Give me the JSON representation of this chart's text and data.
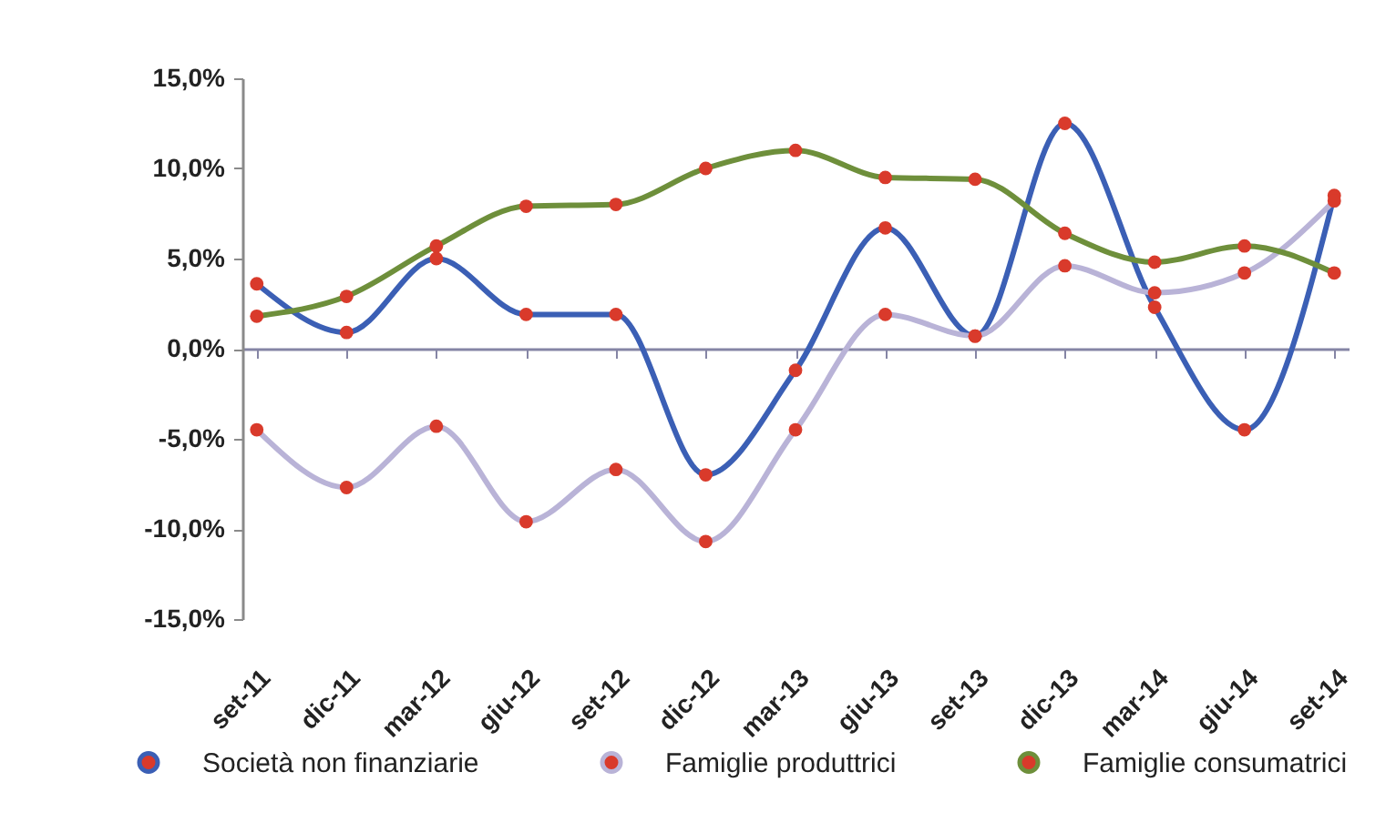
{
  "chart_data": {
    "type": "line",
    "categories": [
      "set-11",
      "dic-11",
      "mar-12",
      "giu-12",
      "set-12",
      "dic-12",
      "mar-13",
      "giu-13",
      "set-13",
      "dic-13",
      "mar-14",
      "giu-14",
      "set-14"
    ],
    "series": [
      {
        "name": "Società non finanziarie",
        "color": "#3b5fb5",
        "colors": [
          "#d93a2b",
          "#d93a2b",
          "#d93a2b",
          "#d93a2b",
          "#d93a2b",
          "#d93a2b",
          "#d93a2b",
          "#d93a2b",
          "#d93a2b",
          "#d93a2b",
          "#d93a2b",
          "#d93a2b",
          "#d93a2b"
        ],
        "values": [
          3.6,
          0.9,
          5.0,
          1.9,
          1.9,
          -7.0,
          -1.2,
          6.7,
          0.7,
          12.5,
          2.3,
          -4.5,
          8.5
        ]
      },
      {
        "name": "Famiglie produttrici",
        "color": "#b9b3d7",
        "colors": [
          "#d93a2b",
          "#d93a2b",
          "#d93a2b",
          "#d93a2b",
          "#d93a2b",
          "#d93a2b",
          "#d93a2b",
          "#d93a2b",
          "#d93a2b",
          "#d93a2b",
          "#d93a2b",
          "#d93a2b",
          "#d93a2b"
        ],
        "values": [
          -4.5,
          -7.7,
          -4.3,
          -9.6,
          -6.7,
          -10.7,
          -4.5,
          1.9,
          0.7,
          4.6,
          3.1,
          4.2,
          8.2
        ]
      },
      {
        "name": "Famiglie consumatrici",
        "color": "#6e8f3b",
        "colors": [
          "#d93a2b",
          "#d93a2b",
          "#d93a2b",
          "#d93a2b",
          "#d93a2b",
          "#d93a2b",
          "#d93a2b",
          "#d93a2b",
          "#d93a2b",
          "#d93a2b",
          "#d93a2b",
          "#d93a2b",
          "#d93a2b"
        ],
        "values": [
          1.8,
          2.9,
          5.7,
          7.9,
          8.0,
          10.0,
          11.0,
          9.5,
          9.4,
          6.4,
          4.8,
          5.7,
          4.2
        ]
      }
    ],
    "ylim": [
      -15,
      15
    ],
    "yticks": [
      {
        "value": -15,
        "label": "-15,0%"
      },
      {
        "value": -10,
        "label": "-10,0%"
      },
      {
        "value": -5,
        "label": "-5,0%"
      },
      {
        "value": 0,
        "label": "0,0%"
      },
      {
        "value": 5,
        "label": "5,0%"
      },
      {
        "value": 10,
        "label": "10,0%"
      },
      {
        "value": 15,
        "label": "15,0%"
      }
    ],
    "marker": "circle",
    "legend": "bottom"
  }
}
